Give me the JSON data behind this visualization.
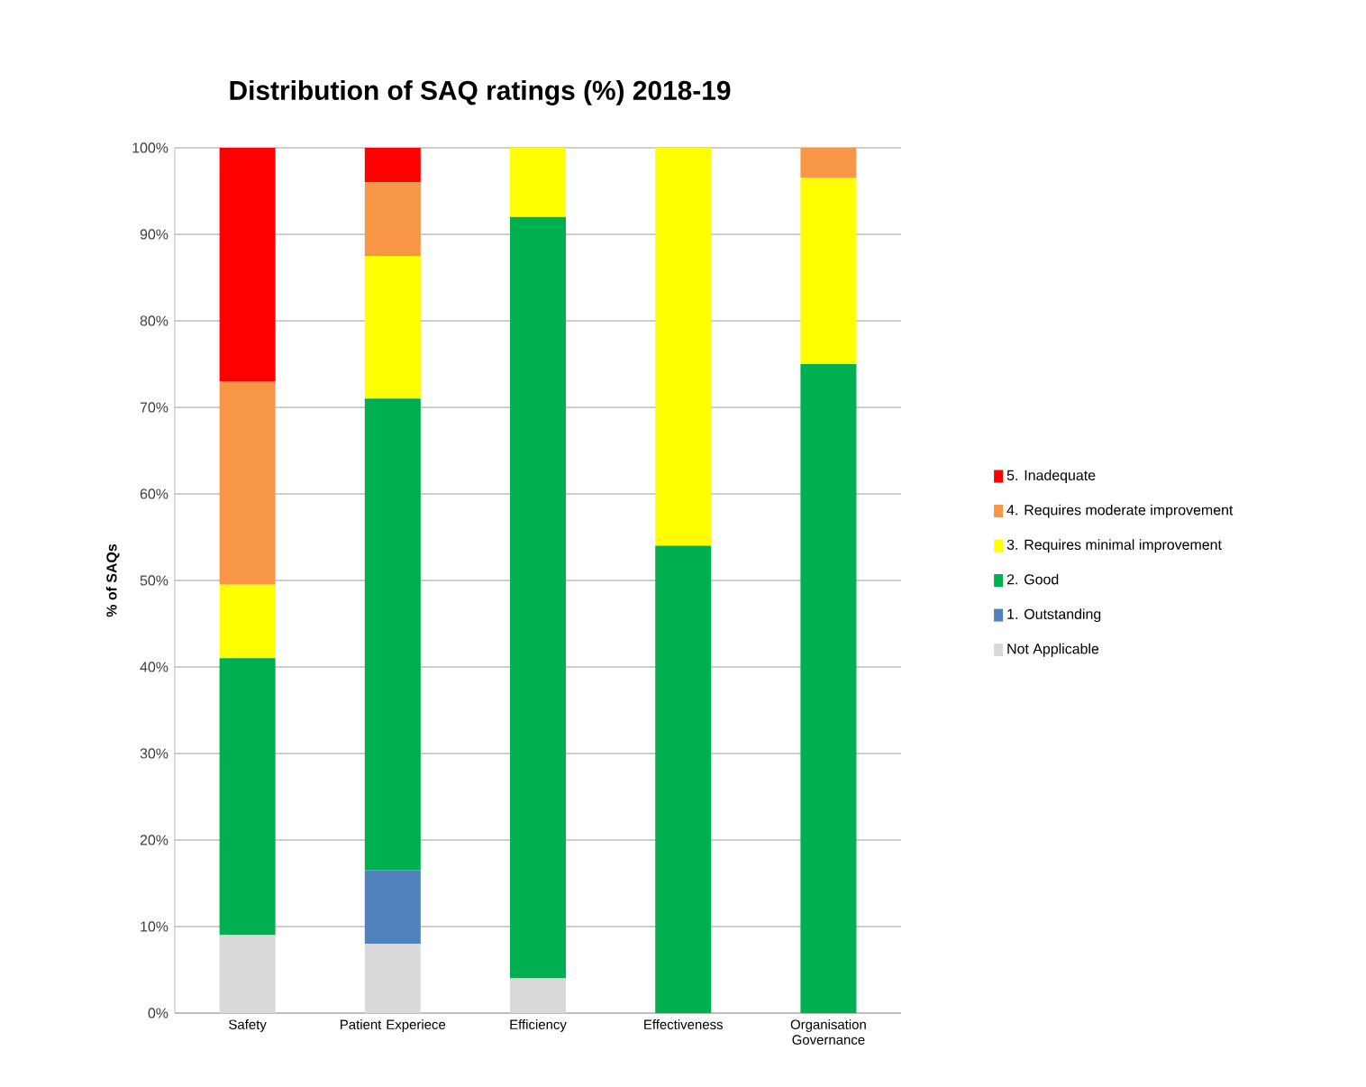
{
  "chart_data": {
    "type": "bar",
    "stacked": true,
    "title": "Distribution of SAQ ratings (%) 2018-19",
    "ylabel": "% of SAQs",
    "categories": [
      "Safety",
      "Patient Experiece",
      "Efficiency",
      "Effectiveness",
      "Organisation Governance"
    ],
    "series": [
      {
        "name": "Not Applicable",
        "color": "#d9d9d9",
        "values": [
          9,
          8,
          4,
          0,
          0
        ]
      },
      {
        "name": "1. Outstanding",
        "color": "#4f81bd",
        "values": [
          0,
          8.5,
          0,
          0,
          0
        ]
      },
      {
        "name": "2. Good",
        "color": "#00b050",
        "values": [
          32,
          54.5,
          88,
          54,
          75
        ]
      },
      {
        "name": "3. Requires minimal improvement",
        "color": "#ffff00",
        "values": [
          8.5,
          16.5,
          8,
          46,
          21.5
        ]
      },
      {
        "name": "4. Requires moderate improvement",
        "color": "#f79646",
        "values": [
          23.5,
          8.5,
          0,
          0,
          3.5
        ]
      },
      {
        "name": "5. Inadequate",
        "color": "#ff0000",
        "values": [
          27,
          4,
          0,
          0,
          0
        ]
      }
    ],
    "ylim": [
      0,
      100
    ],
    "yticks": [
      {
        "value": 0,
        "label": "0%"
      },
      {
        "value": 10,
        "label": "10%"
      },
      {
        "value": 20,
        "label": "20%"
      },
      {
        "value": 30,
        "label": "30%"
      },
      {
        "value": 40,
        "label": "40%"
      },
      {
        "value": 50,
        "label": "50%"
      },
      {
        "value": 60,
        "label": "60%"
      },
      {
        "value": 70,
        "label": "70%"
      },
      {
        "value": 80,
        "label": "80%"
      },
      {
        "value": 90,
        "label": "90%"
      },
      {
        "value": 100,
        "label": "100%"
      }
    ],
    "grid": "y",
    "legend": "right"
  }
}
